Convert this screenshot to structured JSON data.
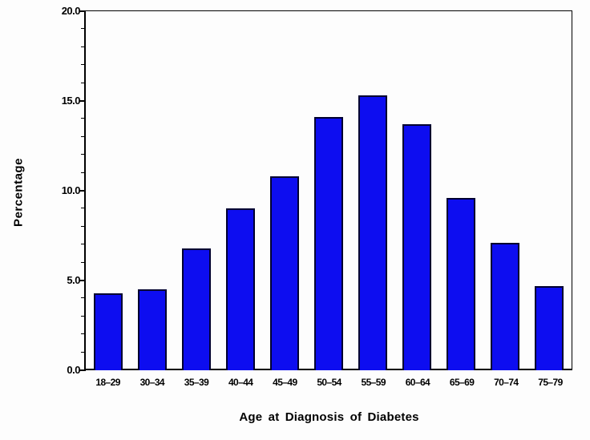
{
  "chart_data": {
    "type": "bar",
    "title": "",
    "categories": [
      "18–29",
      "30–34",
      "35–39",
      "40–44",
      "45–49",
      "50–54",
      "55–59",
      "60–64",
      "65–69",
      "70–74",
      "75–79"
    ],
    "values": [
      4.3,
      4.5,
      6.8,
      9.0,
      10.8,
      14.1,
      15.3,
      13.7,
      9.6,
      7.1,
      4.7
    ],
    "xlabel": "Age at Diagnosis of Diabetes",
    "ylabel": "Percentage",
    "ylim": [
      0,
      20
    ],
    "y_major_tick_interval": 5,
    "y_minor_tick_interval": 1,
    "y_tick_labels": [
      "0.0",
      "5.0",
      "10.0",
      "15.0",
      "20.0"
    ],
    "grid": "off",
    "legend": "none",
    "bar_fill_color": "#0d0df0",
    "bar_border_color": "#000030",
    "axis_color": "#000000",
    "background_color": "#fdfdfd"
  }
}
